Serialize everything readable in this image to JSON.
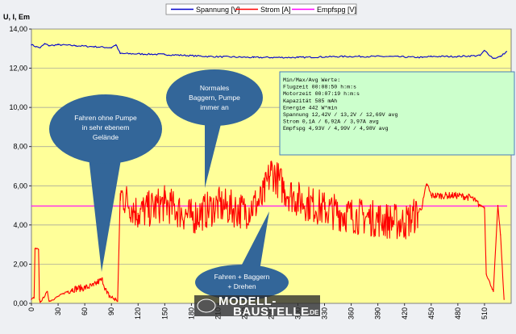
{
  "chart_data": {
    "type": "line",
    "y_axis_title": "U, I, Em",
    "ylim": [
      0,
      14
    ],
    "yticks": [
      "0,00",
      "2,00",
      "4,00",
      "6,00",
      "8,00",
      "10,00",
      "12,00",
      "14,00"
    ],
    "xlim": [
      0,
      540
    ],
    "xticks": [
      0,
      30,
      60,
      90,
      120,
      150,
      180,
      210,
      240,
      270,
      300,
      330,
      360,
      390,
      420,
      450,
      480,
      510
    ],
    "grid": "horizontal",
    "legend_position": "top",
    "colors": {
      "plot_bg": "#ffff99",
      "spannung": "#0000cc",
      "strom": "#ff0000",
      "empfspg": "#ff00ff",
      "bubble": "#336699",
      "info_bg": "#ccffcc",
      "info_border": "#4a7ebb"
    },
    "series": [
      {
        "name": "Spannung [V]",
        "x": [
          0,
          5,
          10,
          15,
          20,
          30,
          50,
          70,
          90,
          95,
          100,
          150,
          200,
          250,
          300,
          350,
          400,
          440,
          450,
          480,
          505,
          510,
          520,
          528,
          535
        ],
        "values": [
          13.2,
          13.1,
          13.05,
          13.25,
          13.15,
          13.2,
          13.15,
          13.1,
          13.05,
          13.2,
          12.75,
          12.7,
          12.6,
          12.55,
          12.55,
          12.6,
          12.6,
          12.55,
          12.6,
          12.6,
          12.65,
          12.9,
          12.5,
          12.6,
          12.85
        ]
      },
      {
        "name": "Strom [A]",
        "x": [
          0,
          3,
          4,
          8,
          9,
          10,
          18,
          20,
          40,
          45,
          50,
          60,
          70,
          75,
          80,
          85,
          90,
          95,
          97,
          100,
          120,
          150,
          180,
          210,
          240,
          260,
          270,
          285,
          300,
          330,
          360,
          390,
          420,
          435,
          440,
          445,
          450,
          480,
          495,
          500,
          505,
          510,
          512,
          520,
          525,
          528,
          532
        ],
        "values": [
          0.2,
          0.3,
          2.8,
          2.75,
          0.2,
          0.05,
          0.6,
          0.1,
          0.6,
          0.7,
          0.75,
          0.8,
          0.9,
          1.1,
          1.2,
          0.5,
          0.3,
          0.2,
          0.1,
          5.6,
          4.6,
          5.1,
          4.4,
          5.0,
          4.7,
          5.3,
          6.8,
          5.8,
          5.3,
          4.8,
          4.5,
          4.3,
          4.1,
          4.6,
          5.0,
          6.1,
          5.5,
          5.5,
          5.4,
          5.2,
          5.0,
          4.9,
          1.5,
          0.6,
          5.0,
          3.5,
          0.2
        ]
      },
      {
        "name": "Empfspg [V]",
        "x": [
          0,
          535
        ],
        "values": [
          4.97,
          4.97
        ]
      }
    ],
    "annotations": [
      {
        "label": "annotation_a",
        "lines": [
          "Fahren ohne Pumpe",
          "in sehr  ebenem",
          "Gelände"
        ]
      },
      {
        "label": "annotation_b",
        "lines": [
          "Normales",
          "Baggern, Pumpe",
          "immer an"
        ]
      },
      {
        "label": "annotation_c",
        "lines": [
          "Fahren + Baggern",
          "+ Drehen"
        ]
      }
    ],
    "info_box": [
      "Min/Max/Avg Werte:",
      "Flugzeit      00:08:50 h:m:s",
      "Motorzeit     00:07:19 h:m:s",
      "Kapazität     585 mAh",
      "Energie       442 W*min",
      "Spannung      12,42V / 13,2V / 12,69V avg",
      "Strom         0,1A / 6,92A / 3,97A avg",
      "Empfspg       4,93V / 4,99V / 4,98V avg"
    ],
    "watermark": {
      "line1": "MODELL-",
      "line2": "BAUSTELLE",
      "suffix": ".DE"
    }
  }
}
